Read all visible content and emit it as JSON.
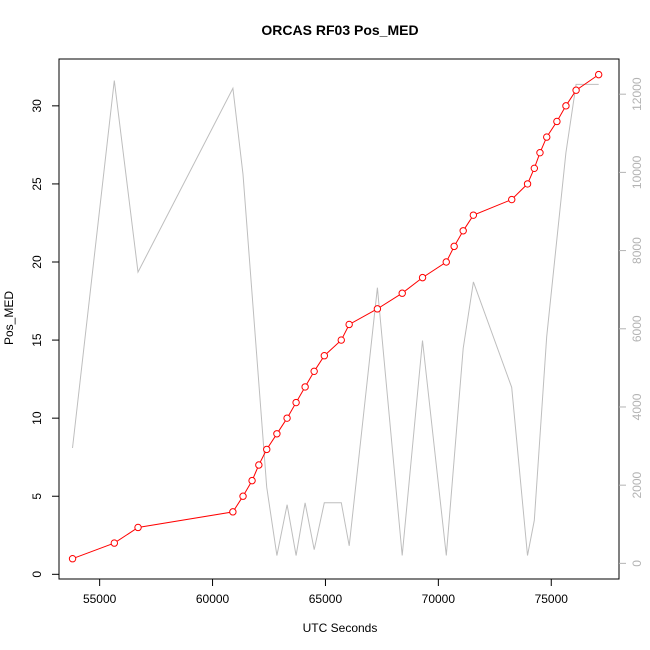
{
  "chart_data": {
    "type": "line",
    "title": "ORCAS RF03 Pos_MED",
    "xlabel": "UTC Seconds",
    "ylabel": "Pos_MED",
    "xlim": [
      53200,
      78000
    ],
    "ylim": [
      -0.3,
      33.0
    ],
    "y2lim": [
      -400,
      12900
    ],
    "x_ticks": [
      55000,
      60000,
      65000,
      70000,
      75000
    ],
    "x_tick_labels": [
      "55000",
      "60000",
      "65000",
      "70000",
      "75000"
    ],
    "y_ticks": [
      0,
      5,
      10,
      15,
      20,
      25,
      30
    ],
    "y_tick_labels": [
      "0",
      "5",
      "10",
      "15",
      "20",
      "25",
      "30"
    ],
    "y2_ticks": [
      0,
      2000,
      4000,
      6000,
      8000,
      10000,
      12000
    ],
    "y2_tick_labels": [
      "0",
      "2000",
      "4000",
      "6000",
      "8000",
      "10000",
      "12000"
    ],
    "grid": false,
    "legend": "none",
    "colors": {
      "primary": "#ff0000",
      "secondary": "#bebebe",
      "axis": "#000000",
      "axis2": "#b3b3b3"
    },
    "series": [
      {
        "axis": "left",
        "style": "line+points",
        "x": [
          53800,
          55650,
          56700,
          60900,
          61350,
          61750,
          62050,
          62400,
          62850,
          63300,
          63700,
          64100,
          64500,
          64950,
          65700,
          66050,
          67300,
          68400,
          69300,
          70350,
          70700,
          71100,
          71550,
          73250,
          73950,
          74250,
          74500,
          74800,
          75250,
          75650,
          76100,
          77100
        ],
        "y": [
          1,
          2,
          3,
          4,
          5,
          6,
          7,
          8,
          9,
          10,
          11,
          12,
          13,
          14,
          15,
          16,
          17,
          18,
          19,
          20,
          21,
          22,
          23,
          24,
          25,
          26,
          27,
          28,
          29,
          30,
          31,
          32
        ]
      },
      {
        "axis": "right",
        "style": "line",
        "x": [
          53800,
          55650,
          56700,
          60900,
          61350,
          62400,
          62850,
          63300,
          63700,
          64100,
          64500,
          64950,
          65700,
          66050,
          67300,
          68400,
          69300,
          70350,
          71100,
          71550,
          73250,
          73950,
          74250,
          74800,
          75650,
          76100,
          77100
        ],
        "y": [
          2950,
          12350,
          7450,
          12150,
          9950,
          1950,
          200,
          1500,
          200,
          1550,
          350,
          1550,
          1550,
          450,
          7050,
          200,
          5700,
          200,
          5500,
          7200,
          4500,
          200,
          1100,
          5800,
          10500,
          12250,
          12250
        ]
      }
    ]
  }
}
